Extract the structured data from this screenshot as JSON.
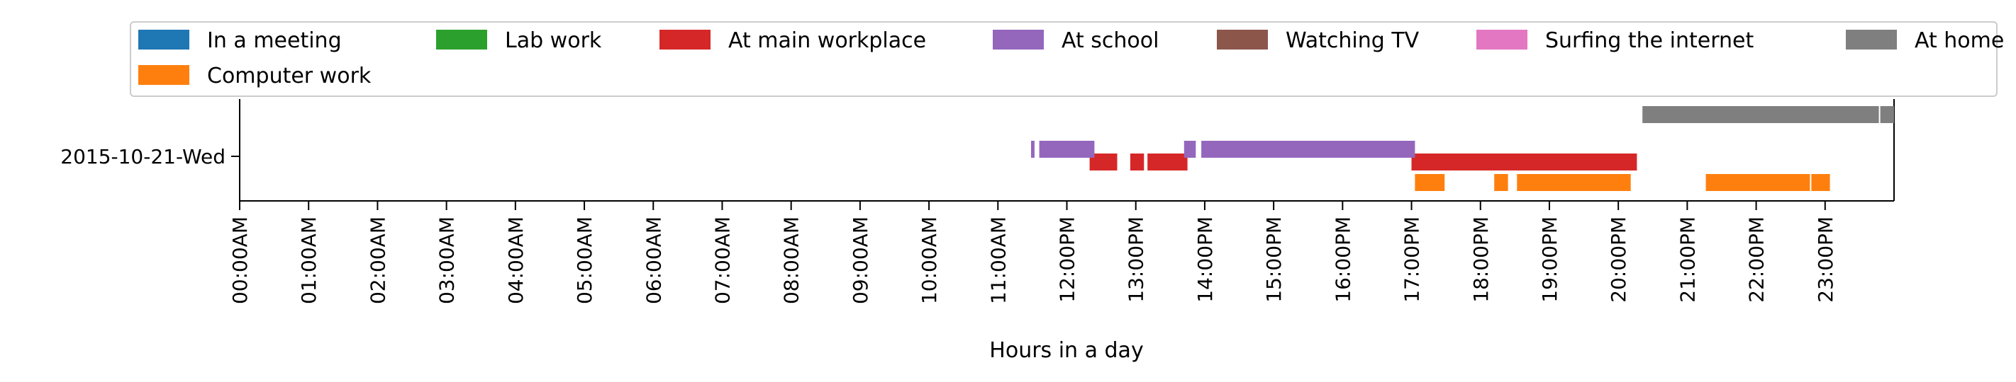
{
  "chart_data": {
    "type": "timeline",
    "xlabel": "Hours in a day",
    "ylabel": "",
    "xlim": [
      0,
      24
    ],
    "grid": false,
    "legend_position": "top",
    "category": "2015-10-21-Wed",
    "x_ticks": [
      {
        "value": 0,
        "label": "00:00AM"
      },
      {
        "value": 1,
        "label": "01:00AM"
      },
      {
        "value": 2,
        "label": "02:00AM"
      },
      {
        "value": 3,
        "label": "03:00AM"
      },
      {
        "value": 4,
        "label": "04:00AM"
      },
      {
        "value": 5,
        "label": "05:00AM"
      },
      {
        "value": 6,
        "label": "06:00AM"
      },
      {
        "value": 7,
        "label": "07:00AM"
      },
      {
        "value": 8,
        "label": "08:00AM"
      },
      {
        "value": 9,
        "label": "09:00AM"
      },
      {
        "value": 10,
        "label": "10:00AM"
      },
      {
        "value": 11,
        "label": "11:00AM"
      },
      {
        "value": 12,
        "label": "12:00PM"
      },
      {
        "value": 13,
        "label": "13:00PM"
      },
      {
        "value": 14,
        "label": "14:00PM"
      },
      {
        "value": 15,
        "label": "15:00PM"
      },
      {
        "value": 16,
        "label": "16:00PM"
      },
      {
        "value": 17,
        "label": "17:00PM"
      },
      {
        "value": 18,
        "label": "18:00PM"
      },
      {
        "value": 19,
        "label": "19:00PM"
      },
      {
        "value": 20,
        "label": "20:00PM"
      },
      {
        "value": 21,
        "label": "21:00PM"
      },
      {
        "value": 22,
        "label": "22:00PM"
      },
      {
        "value": 23,
        "label": "23:00PM"
      }
    ],
    "series": [
      {
        "name": "In a meeting",
        "color": "#1f77b4",
        "lane": 0,
        "intervals": []
      },
      {
        "name": "Lab work",
        "color": "#2ca02c",
        "lane": 0,
        "intervals": []
      },
      {
        "name": "At main workplace",
        "color": "#d62728",
        "lane": 1,
        "intervals": [
          [
            12.33,
            12.73
          ],
          [
            12.92,
            13.12
          ],
          [
            13.17,
            13.75
          ],
          [
            17.0,
            20.27
          ]
        ]
      },
      {
        "name": "At school",
        "color": "#9467bd",
        "lane": 2,
        "intervals": [
          [
            11.48,
            11.53
          ],
          [
            11.6,
            12.4
          ],
          [
            13.7,
            13.87
          ],
          [
            13.95,
            17.05
          ]
        ]
      },
      {
        "name": "Watching TV",
        "color": "#8c564b",
        "lane": 0,
        "intervals": []
      },
      {
        "name": "Surfing the internet",
        "color": "#e377c2",
        "lane": 0,
        "intervals": []
      },
      {
        "name": "At home",
        "color": "#7f7f7f",
        "lane": 3,
        "intervals": [
          [
            20.35,
            23.78
          ],
          [
            23.8,
            24.0
          ]
        ]
      },
      {
        "name": "Computer work",
        "color": "#ff7f0e",
        "lane": 0,
        "intervals": [
          [
            17.05,
            17.48
          ],
          [
            18.2,
            18.4
          ],
          [
            18.53,
            20.18
          ],
          [
            21.27,
            22.78
          ],
          [
            22.8,
            23.07
          ]
        ]
      }
    ]
  }
}
